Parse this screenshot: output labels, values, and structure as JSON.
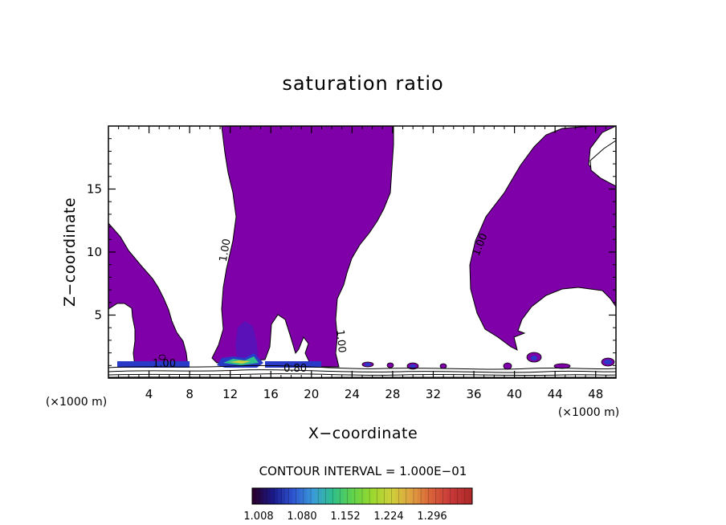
{
  "chart_data": {
    "type": "contour",
    "title": "saturation ratio",
    "xlabel": "X−coordinate",
    "ylabel": "Z−coordinate",
    "x_unit": "(×1000 m)",
    "x_ticks": [
      4,
      8,
      12,
      16,
      20,
      24,
      28,
      32,
      36,
      40,
      44,
      48
    ],
    "y_ticks": [
      5,
      10,
      15
    ],
    "xlim": [
      0,
      50
    ],
    "ylim": [
      0,
      20
    ],
    "contour_interval_text": "CONTOUR INTERVAL = 1.000E−01",
    "contour_labels": [
      {
        "text": "1.00",
        "x": 11.8,
        "y": 10.1,
        "angle": -80
      },
      {
        "text": "1.00",
        "x": 5.5,
        "y": 0.9,
        "angle": 0
      },
      {
        "text": "1.00",
        "x": 22.6,
        "y": 2.9,
        "angle": 85
      },
      {
        "text": "1.00",
        "x": 36.9,
        "y": 10.5,
        "angle": -68
      },
      {
        "text": "0.80",
        "x": 18.4,
        "y": 0.5,
        "angle": 0
      }
    ],
    "colorbar": {
      "tick_labels": [
        "1.008",
        "1.080",
        "1.152",
        "1.224",
        "1.296"
      ],
      "colors": [
        "#2a0030",
        "#1a1a8c",
        "#2e55d0",
        "#3a9ad8",
        "#2fbf8c",
        "#5fd24a",
        "#9ad82e",
        "#cfcf3a",
        "#e0a040",
        "#d86038",
        "#c83838",
        "#b02a2a"
      ]
    },
    "fill_color": "#7f00a8"
  }
}
